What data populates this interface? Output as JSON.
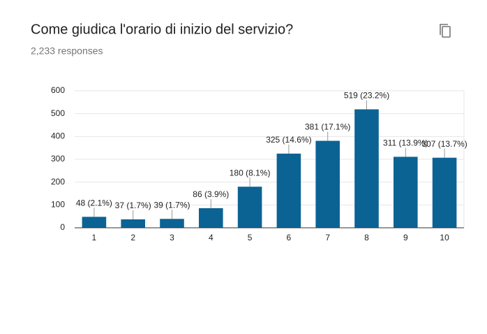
{
  "chart_data": {
    "type": "bar",
    "title": "Come giudica l'orario di inizio del servizio?",
    "subtitle": "2,233 responses",
    "categories": [
      "1",
      "2",
      "3",
      "4",
      "5",
      "6",
      "7",
      "8",
      "9",
      "10"
    ],
    "values": [
      48,
      37,
      39,
      86,
      180,
      325,
      381,
      519,
      311,
      307
    ],
    "value_labels": [
      "48 (2.1%)",
      "37 (1.7%)",
      "39 (1.7%)",
      "86 (3.9%)",
      "180 (8.1%)",
      "325 (14.6%)",
      "381 (17.1%)",
      "519 (23.2%)",
      "311 (13.9%)",
      "307 (13.7%)"
    ],
    "color": "#0b6394",
    "ylim": [
      0,
      600
    ],
    "yticks": [
      0,
      100,
      200,
      300,
      400,
      500,
      600
    ],
    "grid": true
  }
}
